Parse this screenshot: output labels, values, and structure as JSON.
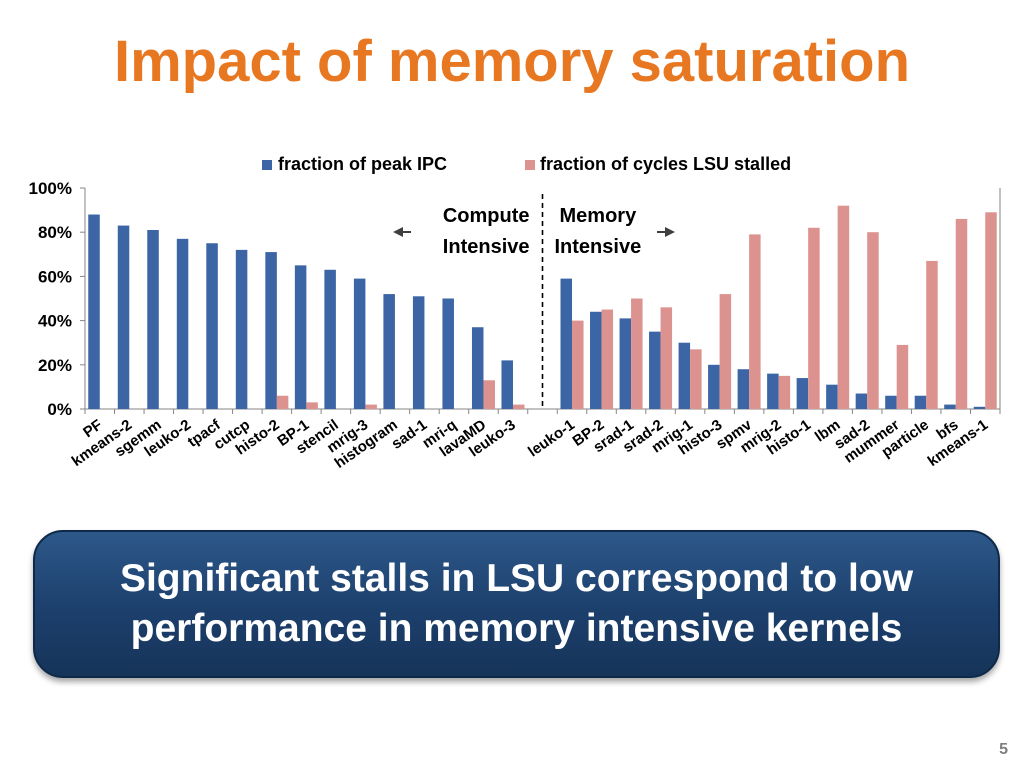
{
  "slide": {
    "title": "Impact of memory saturation",
    "callout": "Significant stalls in LSU correspond to low\nperformance in memory intensive kernels",
    "page_number": "5"
  },
  "chart_data": {
    "type": "bar",
    "title": "",
    "xlabel": "",
    "ylabel": "",
    "ylim": [
      0,
      100
    ],
    "yticks": [
      "0%",
      "20%",
      "40%",
      "60%",
      "80%",
      "100%"
    ],
    "grid": false,
    "legend": "top-center",
    "colors": {
      "ipc": "#3b65a5",
      "lsu": "#dc9390",
      "arrows": "#3f3f3f"
    },
    "groups": [
      {
        "label_left": "Compute",
        "label_left2": "Intensive",
        "categories": [
          "PF",
          "kmeans-2",
          "sgemm",
          "leuko-2",
          "tpacf",
          "cutcp",
          "histo-2",
          "BP-1",
          "stencil",
          "mrig-3",
          "histogram",
          "sad-1",
          "mri-q",
          "lavaMD",
          "leuko-3"
        ]
      },
      {
        "label_right": "Memory",
        "label_right2": "Intensive",
        "categories": [
          "leuko-1",
          "BP-2",
          "srad-1",
          "srad-2",
          "mrig-1",
          "histo-3",
          "spmv",
          "mrig-2",
          "histo-1",
          "lbm",
          "sad-2",
          "mummer",
          "particle",
          "bfs",
          "kmeans-1"
        ]
      }
    ],
    "series": [
      {
        "name": "fraction of peak IPC",
        "values": [
          88,
          83,
          81,
          77,
          75,
          72,
          71,
          65,
          63,
          59,
          52,
          51,
          50,
          37,
          22,
          59,
          44,
          41,
          35,
          30,
          20,
          18,
          16,
          14,
          11,
          7,
          6,
          6,
          2,
          1
        ]
      },
      {
        "name": "fraction of cycles LSU stalled",
        "values": [
          0,
          0,
          0,
          0,
          0,
          0,
          6,
          3,
          0,
          2,
          0,
          0,
          0,
          13,
          2,
          40,
          45,
          50,
          46,
          27,
          52,
          79,
          15,
          82,
          92,
          80,
          29,
          67,
          86,
          89
        ]
      }
    ]
  }
}
